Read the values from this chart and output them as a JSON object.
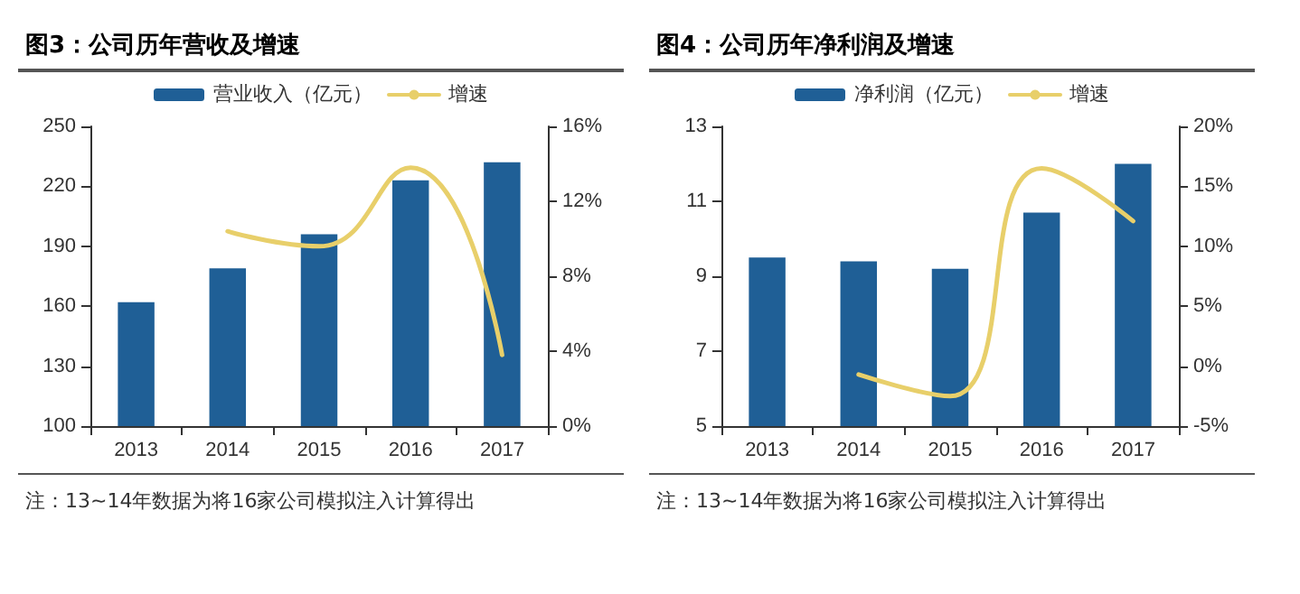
{
  "chart_data": [
    {
      "type": "bar",
      "title": "图3：公司历年营收及增速",
      "categories": [
        "2013",
        "2014",
        "2015",
        "2016",
        "2017"
      ],
      "series": [
        {
          "name": "营业收入（亿元）",
          "color": "#1f5f96",
          "values": [
            162,
            179,
            196,
            223,
            232
          ]
        },
        {
          "name": "增速",
          "type": "line",
          "axis": "y2",
          "color": "#e8cf6a",
          "values": [
            null,
            10.4,
            9.6,
            13.8,
            3.8
          ]
        }
      ],
      "ylim": [
        100,
        250
      ],
      "yticks": [
        100,
        130,
        160,
        190,
        220,
        250
      ],
      "y2lim": [
        0,
        16
      ],
      "y2ticks": [
        {
          "value": 0,
          "label": "0%"
        },
        {
          "value": 4,
          "label": "4%"
        },
        {
          "value": 8,
          "label": "8%"
        },
        {
          "value": 12,
          "label": "12%"
        },
        {
          "value": 16,
          "label": "16%"
        }
      ],
      "legend": "top",
      "grid": false,
      "marker": "none",
      "line_style": "solid",
      "annotations": [
        "注：13~14年数据为将16家公司模拟注入计算得出"
      ]
    },
    {
      "type": "bar",
      "title": "图4：公司历年净利润及增速",
      "categories": [
        "2013",
        "2014",
        "2015",
        "2016",
        "2017"
      ],
      "series": [
        {
          "name": "净利润（亿元）",
          "color": "#1f5f96",
          "values": [
            9.5,
            9.4,
            9.2,
            10.7,
            12.0
          ]
        },
        {
          "name": "增速",
          "type": "line",
          "axis": "y2",
          "color": "#e8cf6a",
          "values": [
            null,
            -0.7,
            -2.5,
            16.5,
            12.1
          ]
        }
      ],
      "ylim": [
        5,
        13
      ],
      "yticks": [
        5,
        7,
        9,
        11,
        13
      ],
      "y2lim": [
        -5,
        20
      ],
      "y2ticks": [
        {
          "value": -5,
          "label": "-5%"
        },
        {
          "value": 0,
          "label": "0%"
        },
        {
          "value": 5,
          "label": "5%"
        },
        {
          "value": 10,
          "label": "10%"
        },
        {
          "value": 15,
          "label": "15%"
        },
        {
          "value": 20,
          "label": "20%"
        }
      ],
      "legend": "top",
      "grid": false,
      "marker": "none",
      "line_style": "solid",
      "annotations": [
        "注：13~14年数据为将16家公司模拟注入计算得出"
      ]
    }
  ]
}
